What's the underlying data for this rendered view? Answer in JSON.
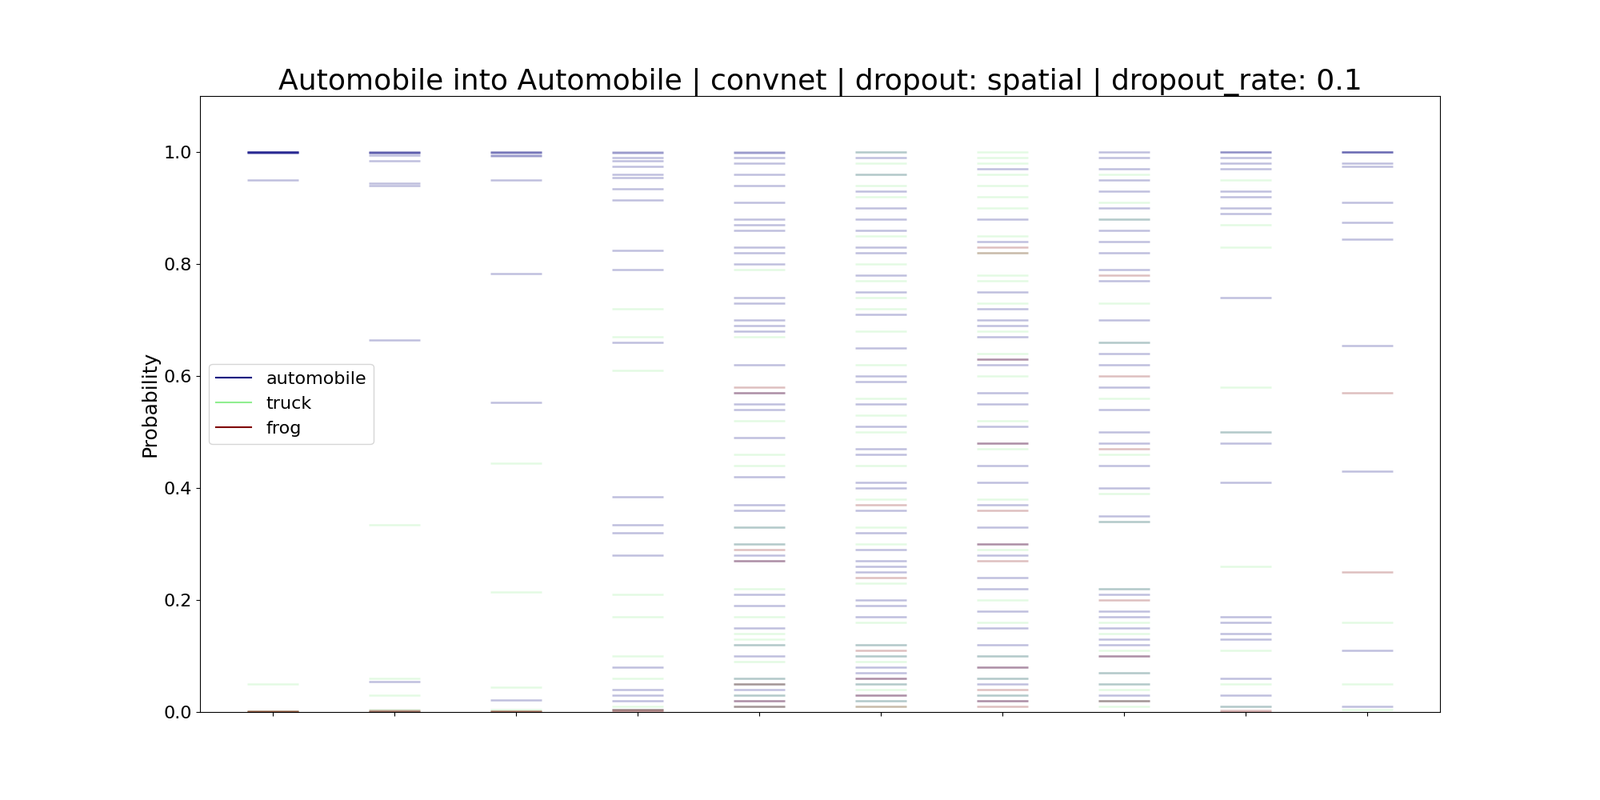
{
  "chart_data": {
    "type": "strip",
    "title": "Automobile into Automobile | convnet | dropout: spatial | dropout_rate: 0.1",
    "y_label": "Probability",
    "categories": [
      null,
      null,
      null,
      null,
      null,
      null,
      null,
      null,
      null,
      null
    ],
    "ylim": [
      0.0,
      1.1
    ],
    "yticks": [
      0.0,
      0.2,
      0.4,
      0.6,
      0.8,
      1.0
    ],
    "legend": "center left",
    "series": [
      {
        "name": "automobile",
        "color": "#00007f",
        "values": [
          [
            1.0,
            1.0,
            1.0,
            1.0,
            1.0,
            0.999,
            0.998,
            0.95
          ],
          [
            1.0,
            1.0,
            0.999,
            0.998,
            0.995,
            0.985,
            0.945,
            0.94,
            0.665,
            0.055,
            0.0
          ],
          [
            1.0,
            1.0,
            0.999,
            0.995,
            0.993,
            0.95,
            0.783,
            0.553,
            0.022
          ],
          [
            1.0,
            0.998,
            0.99,
            0.985,
            0.975,
            0.96,
            0.955,
            0.935,
            0.915,
            0.825,
            0.79,
            0.66,
            0.385,
            0.335,
            0.32,
            0.28,
            0.08,
            0.04,
            0.03,
            0.02,
            0.005
          ],
          [
            1.0,
            0.998,
            0.99,
            0.98,
            0.96,
            0.94,
            0.91,
            0.88,
            0.87,
            0.86,
            0.83,
            0.82,
            0.8,
            0.74,
            0.73,
            0.7,
            0.69,
            0.68,
            0.62,
            0.57,
            0.55,
            0.54,
            0.49,
            0.42,
            0.37,
            0.36,
            0.33,
            0.3,
            0.28,
            0.27,
            0.21,
            0.19,
            0.15,
            0.12,
            0.1,
            0.06,
            0.05,
            0.04,
            0.03,
            0.02,
            0.01
          ],
          [
            1.0,
            0.99,
            0.96,
            0.93,
            0.9,
            0.88,
            0.86,
            0.83,
            0.82,
            0.78,
            0.75,
            0.71,
            0.65,
            0.6,
            0.59,
            0.55,
            0.51,
            0.47,
            0.46,
            0.41,
            0.4,
            0.36,
            0.32,
            0.29,
            0.27,
            0.26,
            0.25,
            0.2,
            0.19,
            0.17,
            0.12,
            0.1,
            0.08,
            0.07,
            0.06,
            0.05,
            0.03,
            0.02
          ],
          [
            0.97,
            0.88,
            0.84,
            0.75,
            0.72,
            0.7,
            0.69,
            0.67,
            0.63,
            0.62,
            0.57,
            0.55,
            0.51,
            0.48,
            0.44,
            0.41,
            0.37,
            0.33,
            0.3,
            0.28,
            0.24,
            0.22,
            0.18,
            0.15,
            0.12,
            0.1,
            0.08,
            0.06,
            0.05,
            0.03,
            0.02
          ],
          [
            1.0,
            0.99,
            0.97,
            0.95,
            0.93,
            0.9,
            0.88,
            0.86,
            0.84,
            0.82,
            0.79,
            0.77,
            0.7,
            0.66,
            0.64,
            0.62,
            0.58,
            0.54,
            0.5,
            0.48,
            0.44,
            0.4,
            0.35,
            0.34,
            0.22,
            0.21,
            0.18,
            0.17,
            0.15,
            0.13,
            0.12,
            0.1,
            0.07,
            0.05,
            0.03,
            0.02
          ],
          [
            1.0,
            1.0,
            0.99,
            0.98,
            0.97,
            0.93,
            0.92,
            0.9,
            0.89,
            0.74,
            0.5,
            0.48,
            0.41,
            0.17,
            0.16,
            0.14,
            0.13,
            0.06,
            0.03,
            0.01
          ],
          [
            1.0,
            1.0,
            1.0,
            0.98,
            0.975,
            0.91,
            0.875,
            0.845,
            0.655,
            0.43,
            0.11,
            0.01
          ]
        ]
      },
      {
        "name": "truck",
        "color": "#90ee90",
        "values": [
          [
            0.0,
            0.0,
            0.001,
            0.05,
            0.002
          ],
          [
            0.0,
            0.001,
            0.005,
            0.03,
            0.335,
            0.06
          ],
          [
            0.0,
            0.002,
            0.005,
            0.045,
            0.445,
            0.215
          ],
          [
            0.72,
            0.67,
            0.61,
            0.21,
            0.17,
            0.06,
            0.1,
            0.01,
            0.005
          ],
          [
            0.79,
            0.67,
            0.52,
            0.46,
            0.44,
            0.33,
            0.3,
            0.22,
            0.17,
            0.14,
            0.13,
            0.12,
            0.09,
            0.06,
            0.05,
            0.03,
            0.01
          ],
          [
            1.0,
            0.98,
            0.96,
            0.94,
            0.92,
            0.85,
            0.8,
            0.77,
            0.74,
            0.72,
            0.68,
            0.62,
            0.56,
            0.53,
            0.5,
            0.44,
            0.38,
            0.33,
            0.3,
            0.23,
            0.16,
            0.12,
            0.1,
            0.09,
            0.05,
            0.04,
            0.02,
            0.01
          ],
          [
            1.0,
            0.99,
            0.98,
            0.96,
            0.94,
            0.92,
            0.9,
            0.85,
            0.82,
            0.78,
            0.77,
            0.73,
            0.68,
            0.64,
            0.6,
            0.52,
            0.47,
            0.38,
            0.29,
            0.2,
            0.16,
            0.1,
            0.06,
            0.03
          ],
          [
            0.96,
            0.91,
            0.88,
            0.73,
            0.66,
            0.56,
            0.46,
            0.39,
            0.34,
            0.22,
            0.16,
            0.14,
            0.11,
            0.07,
            0.05,
            0.04,
            0.02,
            0.01
          ],
          [
            0.95,
            0.87,
            0.83,
            0.58,
            0.5,
            0.26,
            0.11,
            0.05,
            0.01
          ],
          [
            0.16,
            0.05,
            0.005
          ]
        ]
      },
      {
        "name": "frog",
        "color": "#7f0000",
        "values": [
          [
            0.0,
            0.0,
            0.001,
            0.002
          ],
          [
            0.0,
            0.002,
            0.003
          ],
          [
            0.0,
            0.001,
            0.002
          ],
          [
            0.0,
            0.003,
            0.005
          ],
          [
            0.58,
            0.57,
            0.29,
            0.27,
            0.05,
            0.02,
            0.01
          ],
          [
            0.37,
            0.24,
            0.11,
            0.06,
            0.03,
            0.01
          ],
          [
            0.83,
            0.82,
            0.63,
            0.48,
            0.36,
            0.3,
            0.27,
            0.08,
            0.04,
            0.02,
            0.01
          ],
          [
            0.78,
            0.6,
            0.47,
            0.2,
            0.1,
            0.02
          ],
          [
            0.0,
            0.003
          ],
          [
            0.57,
            0.25
          ]
        ]
      }
    ]
  }
}
